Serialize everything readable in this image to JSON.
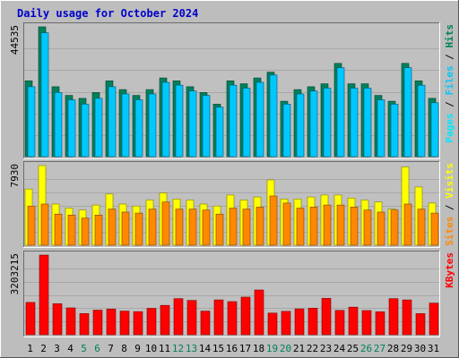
{
  "title": "Daily usage for October 2024",
  "colors": {
    "background": "#bdbdbd",
    "panel": "#c0c0c0",
    "hits": "#00805c",
    "files": "#00c8ff",
    "pages": "#00e8ff",
    "visits": "#ffff00",
    "sites": "#ff8800",
    "kbytes": "#ff0000",
    "weekday_label": "#000000",
    "weekend_label": "#00805c"
  },
  "chart_data": [
    {
      "type": "bar",
      "panel": "hits-files-pages",
      "ymax_label": "44535",
      "ylim": [
        0,
        44535
      ],
      "legend": [
        "Pages",
        "/",
        "Files",
        "/",
        "Hits"
      ],
      "legend_placement": "right",
      "categories": [
        "1",
        "2",
        "3",
        "4",
        "5",
        "6",
        "7",
        "8",
        "9",
        "10",
        "11",
        "12",
        "13",
        "14",
        "15",
        "16",
        "17",
        "18",
        "19",
        "20",
        "21",
        "22",
        "23",
        "24",
        "25",
        "26",
        "27",
        "28",
        "29",
        "30",
        "31"
      ],
      "weekend": [
        "5",
        "6",
        "12",
        "13",
        "19",
        "20",
        "26",
        "27"
      ],
      "series": [
        {
          "name": "Hits",
          "values": [
            26000,
            44535,
            24000,
            21000,
            20000,
            22000,
            26000,
            23000,
            21000,
            23000,
            27000,
            26000,
            24000,
            22000,
            18000,
            26000,
            25000,
            27000,
            29000,
            19000,
            23000,
            24000,
            25000,
            32000,
            25000,
            25000,
            21000,
            19000,
            32000,
            26000,
            20000
          ]
        },
        {
          "name": "Files",
          "values": [
            24000,
            42500,
            22000,
            19500,
            18000,
            20000,
            24000,
            21500,
            19500,
            21500,
            25500,
            24500,
            22500,
            21000,
            17000,
            24500,
            23500,
            25500,
            28000,
            18000,
            21500,
            22500,
            23500,
            30500,
            23500,
            23500,
            19500,
            18000,
            30500,
            24500,
            18500
          ]
        },
        {
          "name": "Pages",
          "values": [
            24000,
            42500,
            22000,
            19500,
            18000,
            20000,
            24000,
            21500,
            19500,
            21500,
            25500,
            24500,
            22500,
            21000,
            17000,
            24500,
            23500,
            25500,
            28000,
            18000,
            21500,
            22500,
            23500,
            30500,
            23500,
            23500,
            19500,
            18000,
            30500,
            24500,
            18500
          ]
        }
      ]
    },
    {
      "type": "bar",
      "panel": "visits-sites",
      "ymax_label": "7930",
      "ylim": [
        0,
        7930
      ],
      "legend": [
        "Sites",
        "/",
        "Visits"
      ],
      "legend_placement": "right",
      "categories": [
        "1",
        "2",
        "3",
        "4",
        "5",
        "6",
        "7",
        "8",
        "9",
        "10",
        "11",
        "12",
        "13",
        "14",
        "15",
        "16",
        "17",
        "18",
        "19",
        "20",
        "21",
        "22",
        "23",
        "24",
        "25",
        "26",
        "27",
        "28",
        "29",
        "30",
        "31"
      ],
      "series": [
        {
          "name": "Visits",
          "values": [
            5600,
            7930,
            4100,
            3700,
            3500,
            4000,
            5100,
            4100,
            3900,
            4500,
            5200,
            4600,
            4500,
            4100,
            3900,
            5000,
            4500,
            4800,
            6500,
            4600,
            4600,
            4800,
            5000,
            5000,
            4700,
            4500,
            4300,
            3600,
            7800,
            5800,
            4200
          ]
        },
        {
          "name": "Sites",
          "values": [
            3900,
            4100,
            3100,
            3000,
            2700,
            3000,
            3600,
            3300,
            3200,
            3600,
            4300,
            3600,
            3600,
            3500,
            3100,
            3700,
            3600,
            3800,
            4900,
            4200,
            3700,
            3800,
            4000,
            4000,
            3800,
            3500,
            3300,
            3500,
            4100,
            3600,
            3200
          ]
        }
      ]
    },
    {
      "type": "bar",
      "panel": "kbytes",
      "ymax_label": "3203215",
      "ylim": [
        0,
        3203215
      ],
      "legend": [
        "KBytes"
      ],
      "legend_placement": "right",
      "categories": [
        "1",
        "2",
        "3",
        "4",
        "5",
        "6",
        "7",
        "8",
        "9",
        "10",
        "11",
        "12",
        "13",
        "14",
        "15",
        "16",
        "17",
        "18",
        "19",
        "20",
        "21",
        "22",
        "23",
        "24",
        "25",
        "26",
        "27",
        "28",
        "29",
        "30",
        "31"
      ],
      "series": [
        {
          "name": "KBytes",
          "values": [
            1300000,
            3203215,
            1250000,
            1080000,
            850000,
            990000,
            1030000,
            950000,
            930000,
            1060000,
            1180000,
            1450000,
            1380000,
            950000,
            1400000,
            1330000,
            1510000,
            1800000,
            870000,
            940000,
            1040000,
            1070000,
            1460000,
            980000,
            1110000,
            970000,
            920000,
            1450000,
            1400000,
            850000,
            1270000
          ]
        }
      ]
    }
  ]
}
